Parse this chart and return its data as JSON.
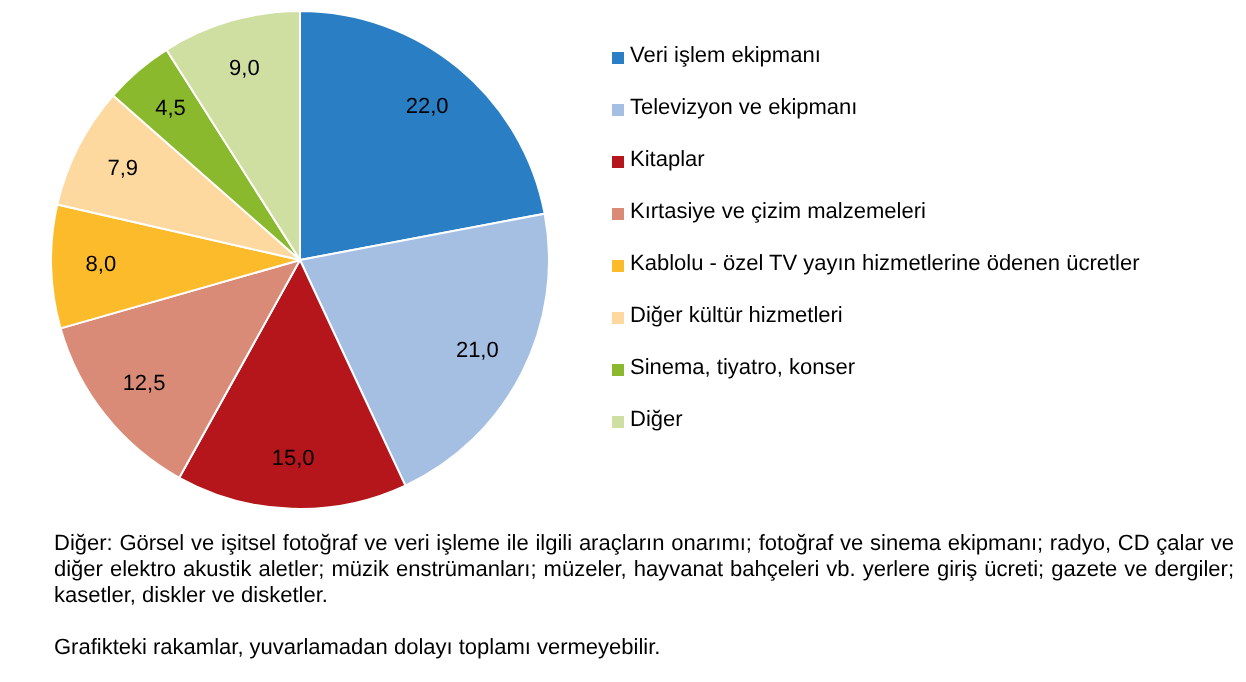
{
  "chart_data": {
    "type": "pie",
    "categories": [
      "Veri işlem ekipmanı",
      "Televizyon ve ekipmanı",
      "Kitaplar",
      "Kırtasiye ve çizim malzemeleri",
      "Kablolu - özel TV yayın hizmetlerine ödenen ücretler",
      "Diğer kültür hizmetleri",
      "Sinema, tiyatro, konser",
      "Diğer"
    ],
    "values": [
      22.0,
      21.0,
      15.0,
      12.5,
      8.0,
      7.9,
      4.5,
      9.0
    ],
    "value_labels": [
      "22,0",
      "21,0",
      "15,0",
      "12,5",
      "8,0",
      "7,9",
      "4,5",
      "9,0"
    ],
    "colors": [
      "#2a7fc4",
      "#a5bfe3",
      "#b5161b",
      "#d98b77",
      "#fbbb2b",
      "#fdd9a0",
      "#8ab92d",
      "#cfdfa2"
    ],
    "legend": "right",
    "annotations": [
      "Diğer: Görsel ve işitsel fotoğraf ve veri işleme ile ilgili araçların onarımı; fotoğraf ve sinema ekipmanı; radyo, CD çalar ve diğer elektro akustik aletler; müzik enstrümanları; müzeler, hayvanat bahçeleri vb. yerlere giriş ücreti; gazete ve dergiler; kasetler, diskler ve disketler.",
      "Grafikteki rakamlar, yuvarlamadan dolayı toplamı vermeyebilir."
    ]
  }
}
